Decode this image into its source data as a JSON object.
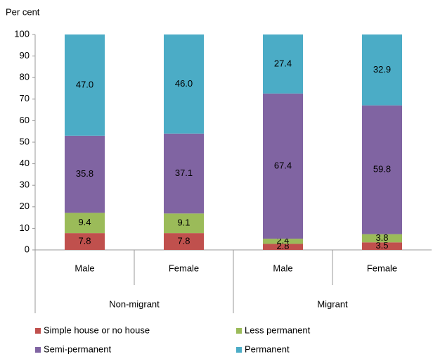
{
  "chart_data": {
    "type": "stacked_bar",
    "y_axis_label": "Per cent",
    "categories": [
      "Male",
      "Female",
      "Male",
      "Female"
    ],
    "groups": [
      {
        "name": "Non-migrant",
        "size": 2
      },
      {
        "name": "Migrant",
        "size": 2
      }
    ],
    "series": [
      {
        "name": "Simple house or no house",
        "color": "#c0504d",
        "values": [
          7.8,
          7.8,
          2.8,
          3.5
        ],
        "value_labels": [
          "7.8",
          "7.8",
          "2.8",
          "3.5"
        ]
      },
      {
        "name": "Less permanent",
        "color": "#9bbb59",
        "values": [
          9.4,
          9.1,
          2.4,
          3.8
        ],
        "value_labels": [
          "9.4",
          "9.1",
          "2.4",
          "3.8"
        ]
      },
      {
        "name": "Semi-permanent",
        "color": "#8064a2",
        "values": [
          35.8,
          37.1,
          67.4,
          59.8
        ],
        "value_labels": [
          "35.8",
          "37.1",
          "67.4",
          "59.8"
        ]
      },
      {
        "name": "Permanent",
        "color": "#4bacc6",
        "values": [
          47.0,
          46.0,
          27.4,
          32.9
        ],
        "value_labels": [
          "47.0",
          "46.0",
          "27.4",
          "32.9"
        ]
      }
    ],
    "ylim": [
      0,
      100
    ],
    "yticks": [
      0,
      10,
      20,
      30,
      40,
      50,
      60,
      70,
      80,
      90,
      100
    ],
    "grid": false
  }
}
